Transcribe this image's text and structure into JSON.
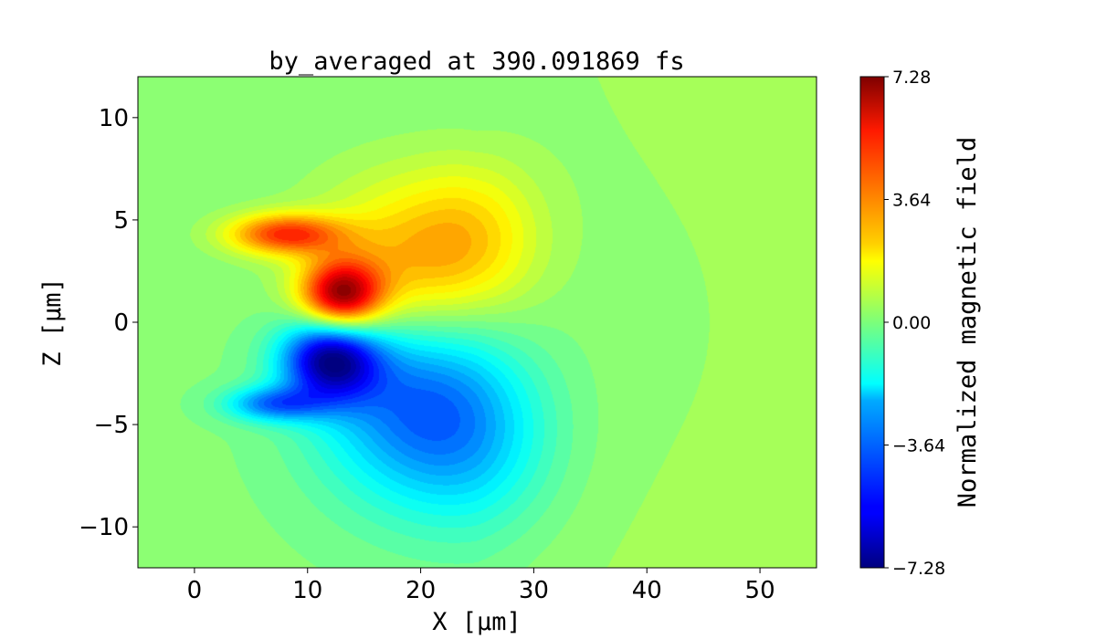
{
  "chart_data": {
    "type": "heatmap",
    "title": "by_averaged at 390.091869 fs",
    "xlabel": "X [μm]",
    "ylabel": "Z [μm]",
    "xlim": [
      -5,
      55
    ],
    "ylim": [
      -12,
      12
    ],
    "x_ticks": [
      {
        "value": 0,
        "label": "0"
      },
      {
        "value": 10,
        "label": "10"
      },
      {
        "value": 20,
        "label": "20"
      },
      {
        "value": 30,
        "label": "30"
      },
      {
        "value": 40,
        "label": "40"
      },
      {
        "value": 50,
        "label": "50"
      }
    ],
    "y_ticks": [
      {
        "value": 10,
        "label": "10"
      },
      {
        "value": 5,
        "label": "5"
      },
      {
        "value": 0,
        "label": "0"
      },
      {
        "value": -5,
        "label": "−5"
      },
      {
        "value": -10,
        "label": "−10"
      }
    ],
    "colormap": "jet",
    "colorbar": {
      "label": "Normalized magnetic field",
      "vmin": -7.28,
      "vmax": 7.28,
      "ticks": [
        {
          "value": 7.28,
          "label": "7.28"
        },
        {
          "value": 3.64,
          "label": "3.64"
        },
        {
          "value": 0.0,
          "label": "0.00"
        },
        {
          "value": -3.64,
          "label": "−3.64"
        },
        {
          "value": -7.28,
          "label": "−7.28"
        }
      ]
    },
    "background_value": 0.8,
    "field_features": [
      {
        "kind": "gaussian",
        "x": 13,
        "z": 1.3,
        "sx": 2.5,
        "sz": 1.2,
        "value": 6.5
      },
      {
        "kind": "gaussian",
        "x": 19,
        "z": 2.5,
        "sx": 6,
        "sz": 3,
        "value": 3.2
      },
      {
        "kind": "gaussian",
        "x": 25,
        "z": 4.5,
        "sx": 4,
        "sz": 2.5,
        "value": 1.4
      },
      {
        "kind": "gaussian",
        "x": 8,
        "z": 4.3,
        "sx": 3.5,
        "sz": 0.7,
        "value": 4.5
      },
      {
        "kind": "gaussian",
        "x": 12,
        "z": -1.8,
        "sx": 3,
        "sz": 1.4,
        "value": -6.5
      },
      {
        "kind": "gaussian",
        "x": 19,
        "z": -3.5,
        "sx": 6,
        "sz": 3.5,
        "value": -3.8
      },
      {
        "kind": "gaussian",
        "x": 25,
        "z": -6,
        "sx": 5,
        "sz": 3,
        "value": -1.6
      },
      {
        "kind": "gaussian",
        "x": 7,
        "z": -4,
        "sx": 3,
        "sz": 0.6,
        "value": -3.6
      },
      {
        "kind": "gaussian",
        "x": 40,
        "z": 0,
        "sx": 15,
        "sz": 8,
        "value": -0.3
      }
    ]
  }
}
